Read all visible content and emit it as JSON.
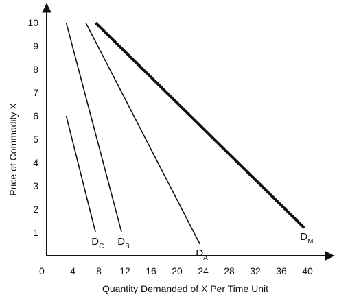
{
  "chart_data": {
    "type": "line",
    "title": "",
    "xlabel": "Quantity Demanded of X Per Time Unit",
    "ylabel": "Price of Commodity X",
    "xlim": [
      0,
      44
    ],
    "ylim": [
      0,
      10.8
    ],
    "origin_label": "0",
    "x_ticks": [
      4,
      8,
      12,
      16,
      20,
      24,
      28,
      32,
      36,
      40
    ],
    "y_ticks": [
      1,
      2,
      3,
      4,
      5,
      6,
      7,
      8,
      9,
      10
    ],
    "grid": false,
    "series": [
      {
        "name": "DC",
        "main": "D",
        "sub": "C",
        "x": [
          3,
          7.5
        ],
        "y": [
          6,
          1
        ],
        "bold": false
      },
      {
        "name": "DB",
        "main": "D",
        "sub": "B",
        "x": [
          3,
          11.5
        ],
        "y": [
          10,
          1
        ],
        "bold": false
      },
      {
        "name": "DA",
        "main": "D",
        "sub": "A",
        "x": [
          6,
          23.5
        ],
        "y": [
          10,
          0.5
        ],
        "bold": false
      },
      {
        "name": "DM",
        "main": "D",
        "sub": "M",
        "x": [
          7.5,
          39.5
        ],
        "y": [
          10,
          1.2
        ],
        "bold": true
      }
    ]
  }
}
